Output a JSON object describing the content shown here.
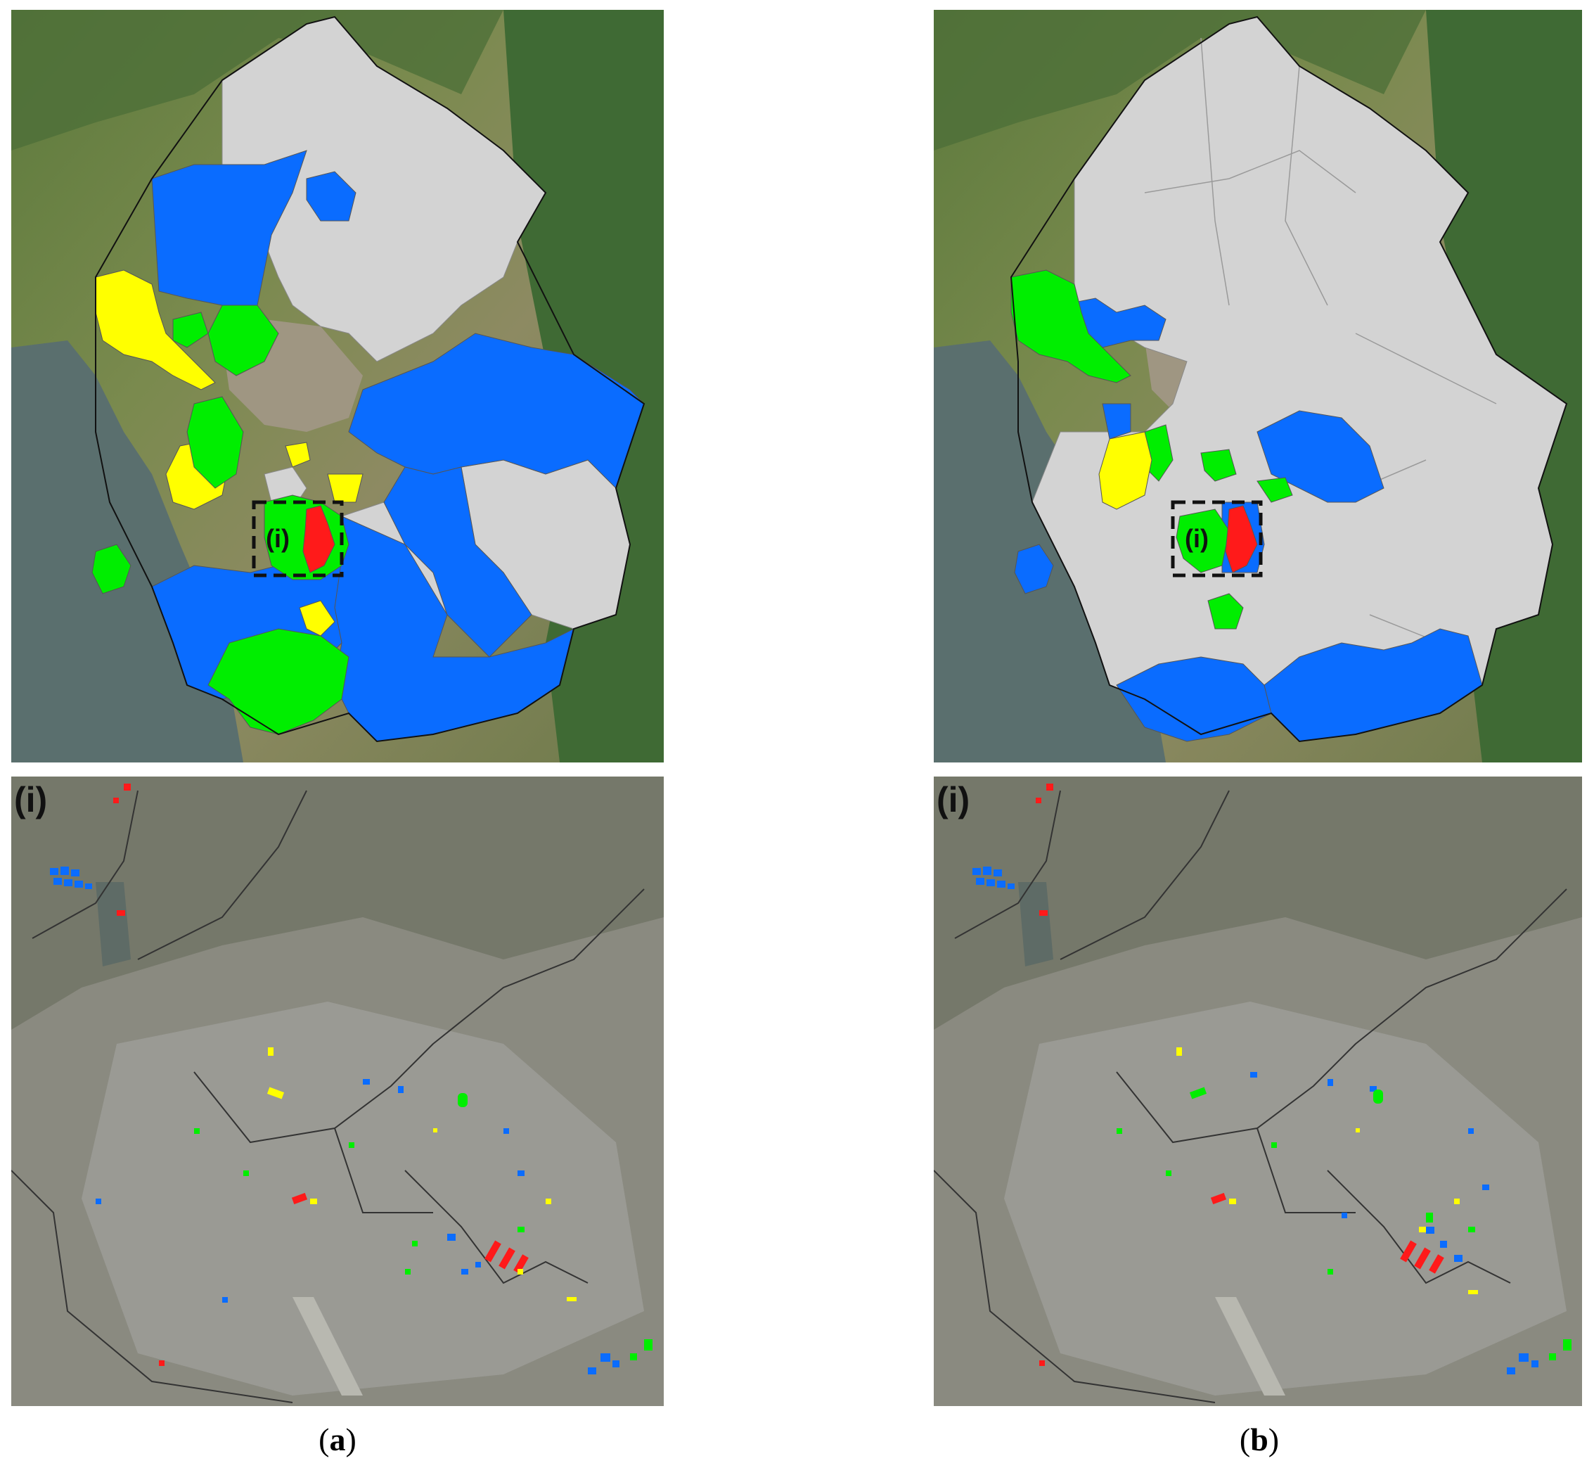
{
  "figure": {
    "panel_a_caption": {
      "open": "(",
      "letter": "a",
      "close": ")"
    },
    "panel_b_caption": {
      "open": "(",
      "letter": "b",
      "close": ")"
    },
    "inset_label": "(i)",
    "box_label": "(i)"
  },
  "legend_colors": {
    "red": "#ff1a1a",
    "yellow": "#ffff00",
    "green": "#00ee00",
    "blue": "#0a6cff",
    "gray": "#d3d3d3"
  },
  "panels": [
    {
      "id": "a",
      "note": "district classification map (overview) and zoomed satellite inset (i)"
    },
    {
      "id": "b",
      "note": "district classification map (overview) and zoomed satellite inset (i)"
    }
  ]
}
